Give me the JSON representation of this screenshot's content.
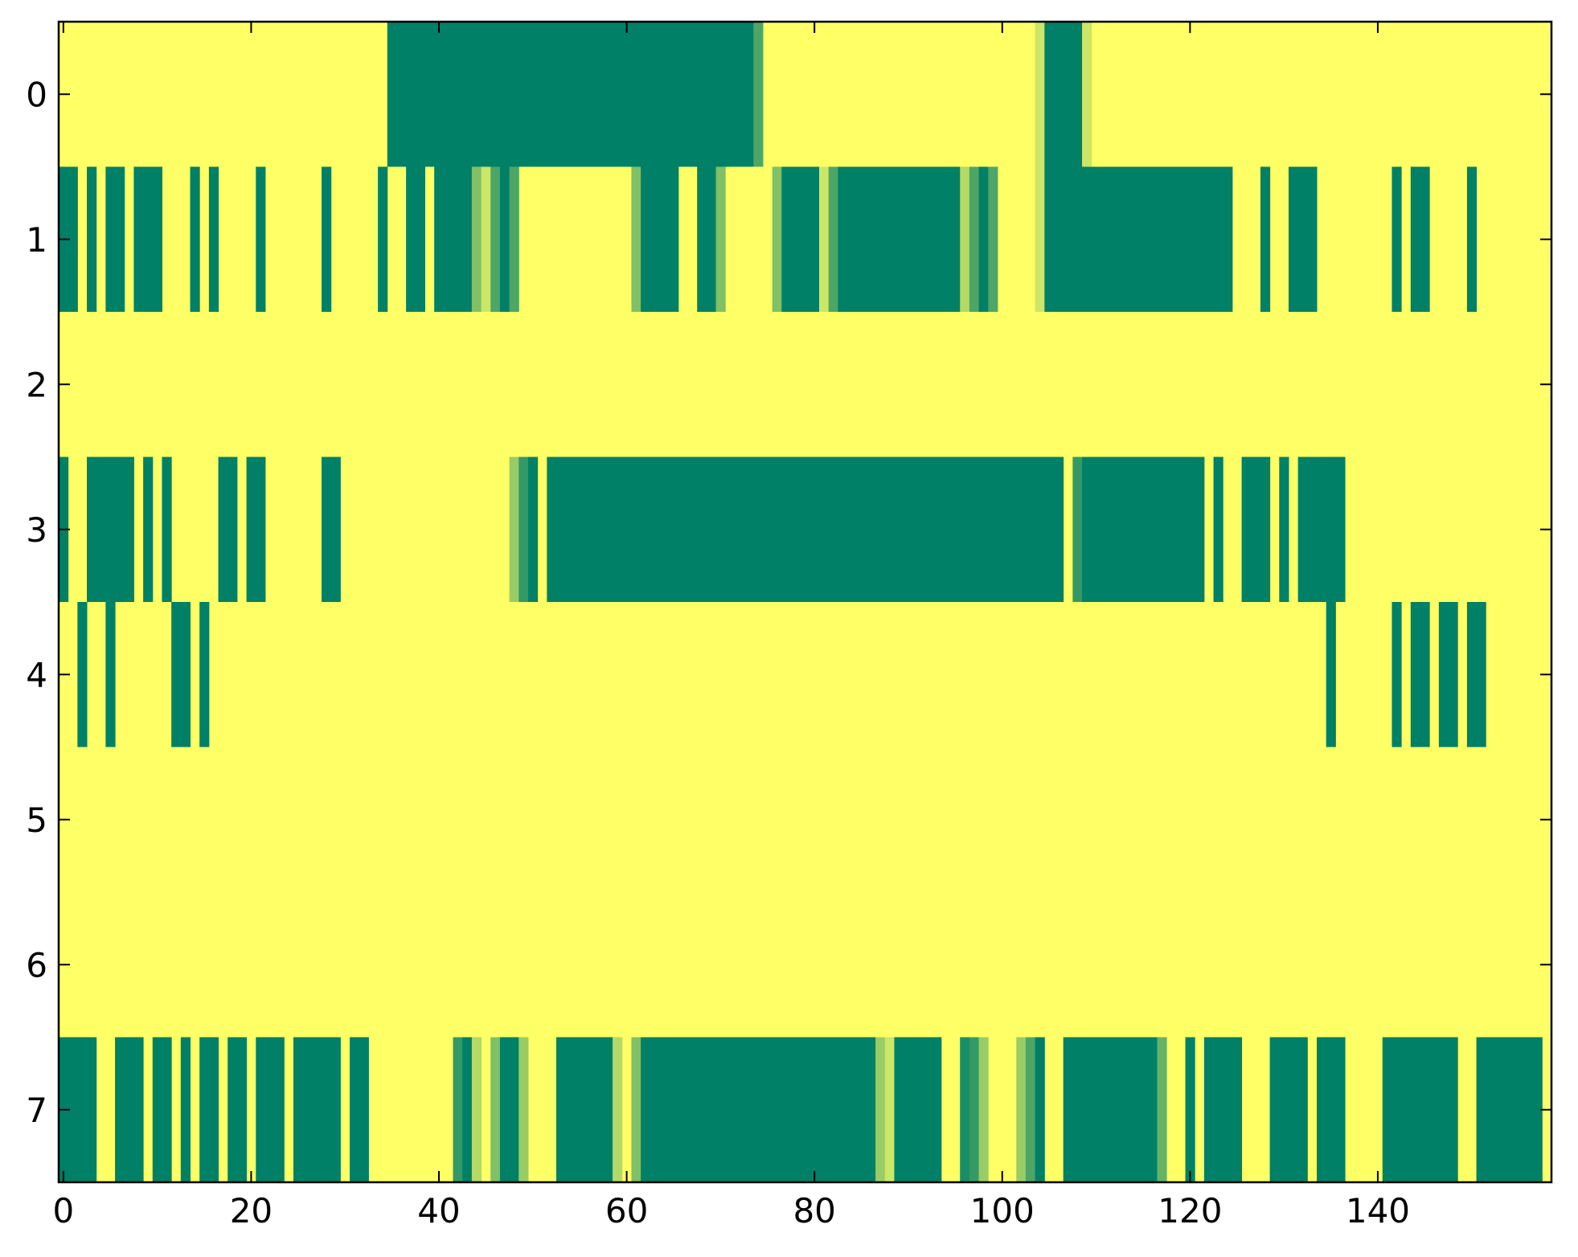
{
  "chart_data": {
    "type": "heatmap",
    "title": "",
    "xlabel": "",
    "ylabel": "",
    "n_rows": 8,
    "n_cols": 159,
    "xlim": [
      -0.5,
      158.5
    ],
    "ylim": [
      7.5,
      -0.5
    ],
    "grid": false,
    "legend": "none",
    "colormap": "summer (0 = green, 1 = yellow)",
    "colors": {
      "low": "#008066",
      "high": "#ffff66",
      "frame": "#000000",
      "background": "#ffffff"
    },
    "value_range": [
      0,
      1
    ],
    "x_ticks": [
      0,
      20,
      40,
      60,
      80,
      100,
      120,
      140
    ],
    "x_tick_labels": [
      "0",
      "20",
      "40",
      "60",
      "80",
      "100",
      "120",
      "140"
    ],
    "y_ticks": [
      0,
      1,
      2,
      3,
      4,
      5,
      6,
      7
    ],
    "y_tick_labels": [
      "0",
      "1",
      "2",
      "3",
      "4",
      "5",
      "6",
      "7"
    ],
    "encoding": "Each row lists runs of columns [start, end_inclusive, value]; cells not covered have value 1 (yellow).",
    "rows": [
      [
        [
          35,
          73,
          0
        ],
        [
          74,
          74,
          0.3
        ],
        [
          104,
          104,
          0.8
        ],
        [
          105,
          108,
          0
        ],
        [
          109,
          109,
          0.8
        ]
      ],
      [
        [
          0,
          1,
          0
        ],
        [
          3,
          3,
          0
        ],
        [
          5,
          6,
          0
        ],
        [
          8,
          10,
          0
        ],
        [
          14,
          14,
          0
        ],
        [
          16,
          16,
          0
        ],
        [
          21,
          21,
          0
        ],
        [
          28,
          28,
          0
        ],
        [
          34,
          34,
          0
        ],
        [
          37,
          38,
          0
        ],
        [
          40,
          43,
          0
        ],
        [
          44,
          44,
          0.5
        ],
        [
          45,
          45,
          0.8
        ],
        [
          46,
          46,
          0.3
        ],
        [
          47,
          47,
          0
        ],
        [
          48,
          48,
          0.3
        ],
        [
          61,
          61,
          0.5
        ],
        [
          62,
          65,
          0
        ],
        [
          68,
          69,
          0
        ],
        [
          70,
          70,
          0.5
        ],
        [
          76,
          76,
          0.5
        ],
        [
          77,
          80,
          0
        ],
        [
          81,
          81,
          0.8
        ],
        [
          82,
          82,
          0.3
        ],
        [
          83,
          95,
          0
        ],
        [
          96,
          96,
          0.7
        ],
        [
          97,
          97,
          0.3
        ],
        [
          98,
          98,
          0
        ],
        [
          99,
          99,
          0.3
        ],
        [
          104,
          104,
          0.8
        ],
        [
          105,
          124,
          0
        ],
        [
          128,
          128,
          0
        ],
        [
          131,
          133,
          0
        ],
        [
          142,
          142,
          0
        ],
        [
          144,
          145,
          0
        ],
        [
          150,
          150,
          0
        ]
      ],
      [],
      [
        [
          0,
          0,
          0
        ],
        [
          3,
          7,
          0
        ],
        [
          9,
          9,
          0
        ],
        [
          11,
          11,
          0
        ],
        [
          17,
          18,
          0
        ],
        [
          20,
          21,
          0
        ],
        [
          28,
          29,
          0
        ],
        [
          48,
          48,
          0.6
        ],
        [
          49,
          49,
          0.2
        ],
        [
          50,
          50,
          0
        ],
        [
          52,
          106,
          0
        ],
        [
          108,
          108,
          0.2
        ],
        [
          109,
          121,
          0
        ],
        [
          123,
          123,
          0
        ],
        [
          126,
          128,
          0
        ],
        [
          130,
          130,
          0
        ],
        [
          132,
          136,
          0
        ]
      ],
      [
        [
          2,
          2,
          0
        ],
        [
          5,
          5,
          0
        ],
        [
          12,
          13,
          0
        ],
        [
          15,
          15,
          0
        ],
        [
          135,
          135,
          0
        ],
        [
          142,
          142,
          0
        ],
        [
          144,
          145,
          0
        ],
        [
          147,
          148,
          0
        ],
        [
          150,
          151,
          0
        ]
      ],
      [],
      [],
      [
        [
          0,
          3,
          0
        ],
        [
          6,
          8,
          0
        ],
        [
          10,
          11,
          0
        ],
        [
          13,
          13,
          0
        ],
        [
          15,
          16,
          0
        ],
        [
          18,
          19,
          0
        ],
        [
          21,
          23,
          0
        ],
        [
          25,
          29,
          0
        ],
        [
          31,
          32,
          0
        ],
        [
          42,
          42,
          0.2
        ],
        [
          43,
          43,
          0
        ],
        [
          44,
          44,
          0.7
        ],
        [
          46,
          46,
          0.5
        ],
        [
          47,
          48,
          0
        ],
        [
          49,
          49,
          0.6
        ],
        [
          53,
          58,
          0
        ],
        [
          59,
          59,
          0.7
        ],
        [
          61,
          61,
          0.5
        ],
        [
          62,
          86,
          0
        ],
        [
          87,
          87,
          0.6
        ],
        [
          88,
          88,
          0.8
        ],
        [
          89,
          93,
          0
        ],
        [
          96,
          96,
          0.1
        ],
        [
          97,
          97,
          0.2
        ],
        [
          98,
          98,
          0.6
        ],
        [
          102,
          102,
          0.6
        ],
        [
          103,
          103,
          0.3
        ],
        [
          104,
          104,
          0
        ],
        [
          107,
          116,
          0
        ],
        [
          117,
          117,
          0.4
        ],
        [
          120,
          120,
          0
        ],
        [
          122,
          125,
          0
        ],
        [
          129,
          132,
          0
        ],
        [
          134,
          136,
          0
        ],
        [
          141,
          146,
          0
        ],
        [
          147,
          148,
          0
        ],
        [
          151,
          157,
          0
        ]
      ]
    ]
  }
}
